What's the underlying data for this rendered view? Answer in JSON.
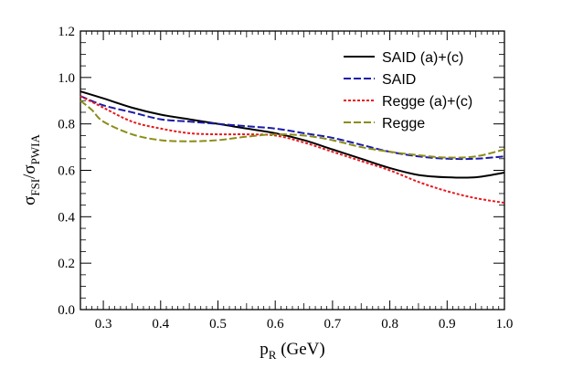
{
  "chart_data": {
    "type": "line",
    "xlabel": {
      "main": "p",
      "sub": "R",
      "suffix": " (GeV)"
    },
    "ylabel": {
      "main": "σ",
      "sub1": "FSI",
      "slash": "/σ",
      "sub2": "PWIA"
    },
    "xlim": [
      0.26,
      1.0
    ],
    "ylim": [
      0.0,
      1.2
    ],
    "xticks": [
      "0.3",
      "0.4",
      "0.5",
      "0.6",
      "0.7",
      "0.8",
      "0.9",
      "1.0"
    ],
    "yticks": [
      "0.0",
      "0.2",
      "0.4",
      "0.6",
      "0.8",
      "1.0",
      "1.2"
    ],
    "grid": false,
    "legend_position": "top-right",
    "series": [
      {
        "name": "SAID (a)+(c)",
        "color": "#000000",
        "dash": "solid",
        "x": [
          0.26,
          0.3,
          0.35,
          0.4,
          0.45,
          0.5,
          0.55,
          0.6,
          0.65,
          0.7,
          0.75,
          0.8,
          0.85,
          0.9,
          0.95,
          1.0
        ],
        "y": [
          0.94,
          0.91,
          0.87,
          0.84,
          0.82,
          0.8,
          0.78,
          0.76,
          0.73,
          0.69,
          0.65,
          0.61,
          0.58,
          0.57,
          0.57,
          0.59
        ]
      },
      {
        "name": "SAID",
        "color": "#1a1aa8",
        "dash": "dashed",
        "x": [
          0.26,
          0.3,
          0.35,
          0.4,
          0.45,
          0.5,
          0.55,
          0.6,
          0.65,
          0.7,
          0.75,
          0.8,
          0.85,
          0.9,
          0.95,
          1.0
        ],
        "y": [
          0.92,
          0.88,
          0.85,
          0.82,
          0.81,
          0.8,
          0.79,
          0.78,
          0.76,
          0.74,
          0.71,
          0.68,
          0.66,
          0.65,
          0.65,
          0.66
        ]
      },
      {
        "name": "Regge (a)+(c)",
        "color": "#e8191f",
        "dash": "dotted",
        "x": [
          0.26,
          0.3,
          0.35,
          0.4,
          0.45,
          0.5,
          0.55,
          0.6,
          0.65,
          0.7,
          0.75,
          0.8,
          0.85,
          0.9,
          0.95,
          1.0
        ],
        "y": [
          0.92,
          0.87,
          0.81,
          0.78,
          0.76,
          0.755,
          0.755,
          0.75,
          0.72,
          0.68,
          0.64,
          0.6,
          0.55,
          0.51,
          0.48,
          0.46
        ]
      },
      {
        "name": "Regge",
        "color": "#8c8c1a",
        "dash": "dashed",
        "x": [
          0.26,
          0.28,
          0.3,
          0.35,
          0.4,
          0.45,
          0.5,
          0.55,
          0.6,
          0.65,
          0.7,
          0.75,
          0.8,
          0.85,
          0.9,
          0.95,
          1.0
        ],
        "y": [
          0.9,
          0.86,
          0.81,
          0.755,
          0.73,
          0.725,
          0.73,
          0.745,
          0.755,
          0.75,
          0.73,
          0.7,
          0.68,
          0.665,
          0.655,
          0.66,
          0.69
        ]
      }
    ]
  }
}
